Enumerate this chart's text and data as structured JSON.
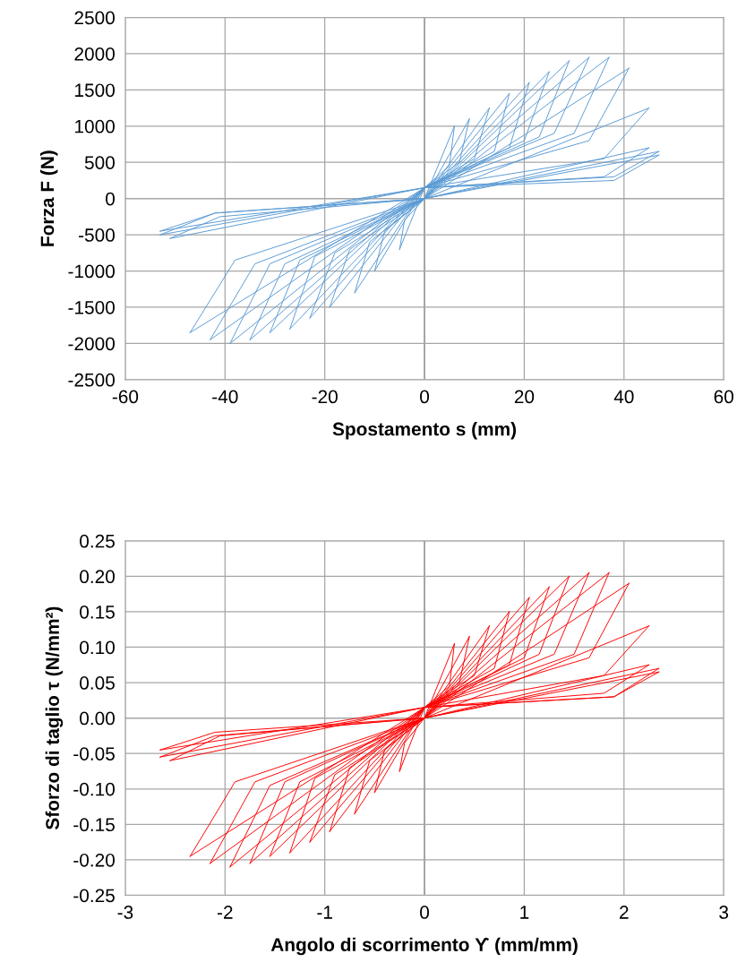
{
  "chart_data": [
    {
      "type": "line",
      "xlabel": "Spostamento s (mm)",
      "ylabel": "Forza F (N)",
      "xlim": [
        -60,
        60
      ],
      "xticks": [
        -60,
        -40,
        -20,
        0,
        20,
        40,
        60
      ],
      "ylim": [
        -2500,
        2500
      ],
      "yticks": [
        -2500,
        -2000,
        -1500,
        -1000,
        -500,
        0,
        500,
        1000,
        1500,
        2000,
        2500
      ],
      "grid": true,
      "marker": "none",
      "line_style": "solid",
      "series": [
        {
          "color": "#5b9bd5",
          "x": [
            0,
            6
          ],
          "values": [
            0,
            1000
          ]
        },
        {
          "color": "#5b9bd5",
          "x": [
            6,
            5,
            0,
            -5
          ],
          "values": [
            1000,
            450,
            150,
            -700
          ]
        },
        {
          "color": "#5b9bd5",
          "x": [
            -5,
            -4,
            0,
            9
          ],
          "values": [
            -700,
            -300,
            0,
            1100
          ]
        },
        {
          "color": "#5b9bd5",
          "x": [
            9,
            7,
            0,
            -10
          ],
          "values": [
            1100,
            500,
            150,
            -1000
          ]
        },
        {
          "color": "#5b9bd5",
          "x": [
            -10,
            -8,
            0,
            13
          ],
          "values": [
            -1000,
            -450,
            0,
            1250
          ]
        },
        {
          "color": "#5b9bd5",
          "x": [
            13,
            10,
            0,
            -14
          ],
          "values": [
            1250,
            550,
            150,
            -1300
          ]
        },
        {
          "color": "#5b9bd5",
          "x": [
            -14,
            -11,
            0,
            17
          ],
          "values": [
            -1300,
            -600,
            0,
            1450
          ]
        },
        {
          "color": "#5b9bd5",
          "x": [
            17,
            14,
            0,
            -19
          ],
          "values": [
            1450,
            650,
            150,
            -1500
          ]
        },
        {
          "color": "#5b9bd5",
          "x": [
            -19,
            -15,
            0,
            21
          ],
          "values": [
            -1500,
            -700,
            0,
            1600
          ]
        },
        {
          "color": "#5b9bd5",
          "x": [
            21,
            17,
            0,
            -23
          ],
          "values": [
            1600,
            700,
            150,
            -1650
          ]
        },
        {
          "color": "#5b9bd5",
          "x": [
            -23,
            -18,
            0,
            25
          ],
          "values": [
            -1650,
            -750,
            0,
            1750
          ]
        },
        {
          "color": "#5b9bd5",
          "x": [
            25,
            20,
            0,
            -27
          ],
          "values": [
            1750,
            800,
            150,
            -1800
          ]
        },
        {
          "color": "#5b9bd5",
          "x": [
            -27,
            -22,
            0,
            29
          ],
          "values": [
            -1800,
            -800,
            0,
            1900
          ]
        },
        {
          "color": "#5b9bd5",
          "x": [
            29,
            23,
            0,
            -31
          ],
          "values": [
            1900,
            850,
            150,
            -1850
          ]
        },
        {
          "color": "#5b9bd5",
          "x": [
            -31,
            -25,
            0,
            33
          ],
          "values": [
            -1850,
            -850,
            0,
            1950
          ]
        },
        {
          "color": "#5b9bd5",
          "x": [
            33,
            26,
            0,
            -35
          ],
          "values": [
            1950,
            900,
            150,
            -1950
          ]
        },
        {
          "color": "#5b9bd5",
          "x": [
            -35,
            -28,
            0,
            37
          ],
          "values": [
            -1950,
            -900,
            0,
            1950
          ]
        },
        {
          "color": "#5b9bd5",
          "x": [
            37,
            30,
            0,
            -39
          ],
          "values": [
            1950,
            900,
            150,
            -2000
          ]
        },
        {
          "color": "#5b9bd5",
          "x": [
            -39,
            -31,
            0,
            41
          ],
          "values": [
            -2000,
            -900,
            0,
            1800
          ]
        },
        {
          "color": "#5b9bd5",
          "x": [
            41,
            33,
            0,
            -43
          ],
          "values": [
            1800,
            800,
            150,
            -1950
          ]
        },
        {
          "color": "#5b9bd5",
          "x": [
            -43,
            -34,
            0,
            45
          ],
          "values": [
            -1950,
            -900,
            0,
            1250
          ]
        },
        {
          "color": "#5b9bd5",
          "x": [
            45,
            36,
            0,
            -47
          ],
          "values": [
            1250,
            550,
            150,
            -1850
          ]
        },
        {
          "color": "#5b9bd5",
          "x": [
            -47,
            -38,
            0,
            47
          ],
          "values": [
            -1850,
            -850,
            0,
            650
          ]
        },
        {
          "color": "#5b9bd5",
          "x": [
            47,
            38,
            0,
            -53
          ],
          "values": [
            650,
            300,
            150,
            -500
          ]
        },
        {
          "color": "#5b9bd5",
          "x": [
            -53,
            -42,
            0,
            45
          ],
          "values": [
            -500,
            -200,
            0,
            700
          ]
        },
        {
          "color": "#5b9bd5",
          "x": [
            45,
            36,
            0,
            -51
          ],
          "values": [
            700,
            300,
            150,
            -550
          ]
        },
        {
          "color": "#5b9bd5",
          "x": [
            -51,
            -41,
            0,
            47
          ],
          "values": [
            -550,
            -250,
            0,
            600
          ]
        },
        {
          "color": "#5b9bd5",
          "x": [
            47,
            38,
            0,
            -53
          ],
          "values": [
            600,
            250,
            150,
            -450
          ]
        },
        {
          "color": "#5b9bd5",
          "x": [
            -53,
            -42,
            0
          ],
          "values": [
            -450,
            -200,
            0
          ]
        }
      ]
    },
    {
      "type": "line",
      "xlabel": "Angolo di scorrimento ϒ (mm/mm)",
      "ylabel": "Sforzo di taglio τ (N/mm²)",
      "xlim": [
        -3,
        3
      ],
      "xticks": [
        -3,
        -2,
        -1,
        0,
        1,
        2,
        3
      ],
      "ylim": [
        -0.25,
        0.25
      ],
      "yticks": [
        -0.25,
        {
          "value": -0.2,
          "label": "-0.20"
        },
        -0.15,
        {
          "value": -0.1,
          "label": "-0.10"
        },
        -0.05,
        {
          "value": 0,
          "label": "0.00"
        },
        0.05,
        {
          "value": 0.1,
          "label": "0.10"
        },
        0.15,
        {
          "value": 0.2,
          "label": "0.20"
        },
        0.25
      ],
      "grid": true,
      "marker": "none",
      "line_style": "solid",
      "series": [
        {
          "color": "#ff0000",
          "x": [
            0,
            0.3
          ],
          "values": [
            0,
            0.105
          ]
        },
        {
          "color": "#ff0000",
          "x": [
            0.3,
            0.25,
            0,
            -0.25
          ],
          "values": [
            0.105,
            0.045,
            0.015,
            -0.075
          ]
        },
        {
          "color": "#ff0000",
          "x": [
            -0.25,
            -0.2,
            0,
            0.45
          ],
          "values": [
            -0.075,
            -0.035,
            0,
            0.115
          ]
        },
        {
          "color": "#ff0000",
          "x": [
            0.45,
            0.35,
            0,
            -0.5
          ],
          "values": [
            0.115,
            0.05,
            0.015,
            -0.105
          ]
        },
        {
          "color": "#ff0000",
          "x": [
            -0.5,
            -0.4,
            0,
            0.65
          ],
          "values": [
            -0.105,
            -0.045,
            0,
            0.13
          ]
        },
        {
          "color": "#ff0000",
          "x": [
            0.65,
            0.5,
            0,
            -0.7
          ],
          "values": [
            0.13,
            0.06,
            0.015,
            -0.135
          ]
        },
        {
          "color": "#ff0000",
          "x": [
            -0.7,
            -0.55,
            0,
            0.85
          ],
          "values": [
            -0.135,
            -0.06,
            0,
            0.15
          ]
        },
        {
          "color": "#ff0000",
          "x": [
            0.85,
            0.7,
            0,
            -0.95
          ],
          "values": [
            0.15,
            0.07,
            0.015,
            -0.16
          ]
        },
        {
          "color": "#ff0000",
          "x": [
            -0.95,
            -0.75,
            0,
            1.05
          ],
          "values": [
            -0.16,
            -0.07,
            0,
            0.17
          ]
        },
        {
          "color": "#ff0000",
          "x": [
            1.05,
            0.85,
            0,
            -1.15
          ],
          "values": [
            0.17,
            0.075,
            0.015,
            -0.175
          ]
        },
        {
          "color": "#ff0000",
          "x": [
            -1.15,
            -0.9,
            0,
            1.25
          ],
          "values": [
            -0.175,
            -0.08,
            0,
            0.185
          ]
        },
        {
          "color": "#ff0000",
          "x": [
            1.25,
            1,
            0,
            -1.35
          ],
          "values": [
            0.185,
            0.085,
            0.015,
            -0.19
          ]
        },
        {
          "color": "#ff0000",
          "x": [
            -1.35,
            -1.1,
            0,
            1.45
          ],
          "values": [
            -0.19,
            -0.085,
            0,
            0.2
          ]
        },
        {
          "color": "#ff0000",
          "x": [
            1.45,
            1.15,
            0,
            -1.55
          ],
          "values": [
            0.2,
            0.09,
            0.015,
            -0.195
          ]
        },
        {
          "color": "#ff0000",
          "x": [
            -1.55,
            -1.25,
            0,
            1.65
          ],
          "values": [
            -0.195,
            -0.09,
            0,
            0.205
          ]
        },
        {
          "color": "#ff0000",
          "x": [
            1.65,
            1.3,
            0,
            -1.75
          ],
          "values": [
            0.205,
            0.09,
            0.015,
            -0.205
          ]
        },
        {
          "color": "#ff0000",
          "x": [
            -1.75,
            -1.4,
            0,
            1.85
          ],
          "values": [
            -0.205,
            -0.09,
            0,
            0.205
          ]
        },
        {
          "color": "#ff0000",
          "x": [
            1.85,
            1.5,
            0,
            -1.95
          ],
          "values": [
            0.205,
            0.09,
            0.015,
            -0.21
          ]
        },
        {
          "color": "#ff0000",
          "x": [
            -1.95,
            -1.55,
            0,
            2.05
          ],
          "values": [
            -0.21,
            -0.095,
            0,
            0.19
          ]
        },
        {
          "color": "#ff0000",
          "x": [
            2.05,
            1.65,
            0,
            -2.15
          ],
          "values": [
            0.19,
            0.085,
            0.015,
            -0.205
          ]
        },
        {
          "color": "#ff0000",
          "x": [
            -2.15,
            -1.7,
            0,
            2.25
          ],
          "values": [
            -0.205,
            -0.09,
            0,
            0.13
          ]
        },
        {
          "color": "#ff0000",
          "x": [
            2.25,
            1.8,
            0,
            -2.35
          ],
          "values": [
            0.13,
            0.06,
            0.015,
            -0.195
          ]
        },
        {
          "color": "#ff0000",
          "x": [
            -2.35,
            -1.9,
            0,
            2.35
          ],
          "values": [
            -0.195,
            -0.09,
            0,
            0.07
          ]
        },
        {
          "color": "#ff0000",
          "x": [
            2.35,
            1.9,
            0,
            -2.65
          ],
          "values": [
            0.07,
            0.03,
            0.015,
            -0.055
          ]
        },
        {
          "color": "#ff0000",
          "x": [
            -2.65,
            -2.1,
            0,
            2.25
          ],
          "values": [
            -0.055,
            -0.025,
            0,
            0.075
          ]
        },
        {
          "color": "#ff0000",
          "x": [
            2.25,
            1.8,
            0,
            -2.55
          ],
          "values": [
            0.075,
            0.035,
            0.015,
            -0.06
          ]
        },
        {
          "color": "#ff0000",
          "x": [
            -2.55,
            -2.05,
            0,
            2.35
          ],
          "values": [
            -0.06,
            -0.025,
            0,
            0.065
          ]
        },
        {
          "color": "#ff0000",
          "x": [
            2.35,
            1.9,
            0,
            -2.65
          ],
          "values": [
            0.065,
            0.03,
            0.015,
            -0.045
          ]
        },
        {
          "color": "#ff0000",
          "x": [
            -2.65,
            -2.1,
            0
          ],
          "values": [
            -0.045,
            -0.02,
            0
          ]
        }
      ]
    }
  ]
}
